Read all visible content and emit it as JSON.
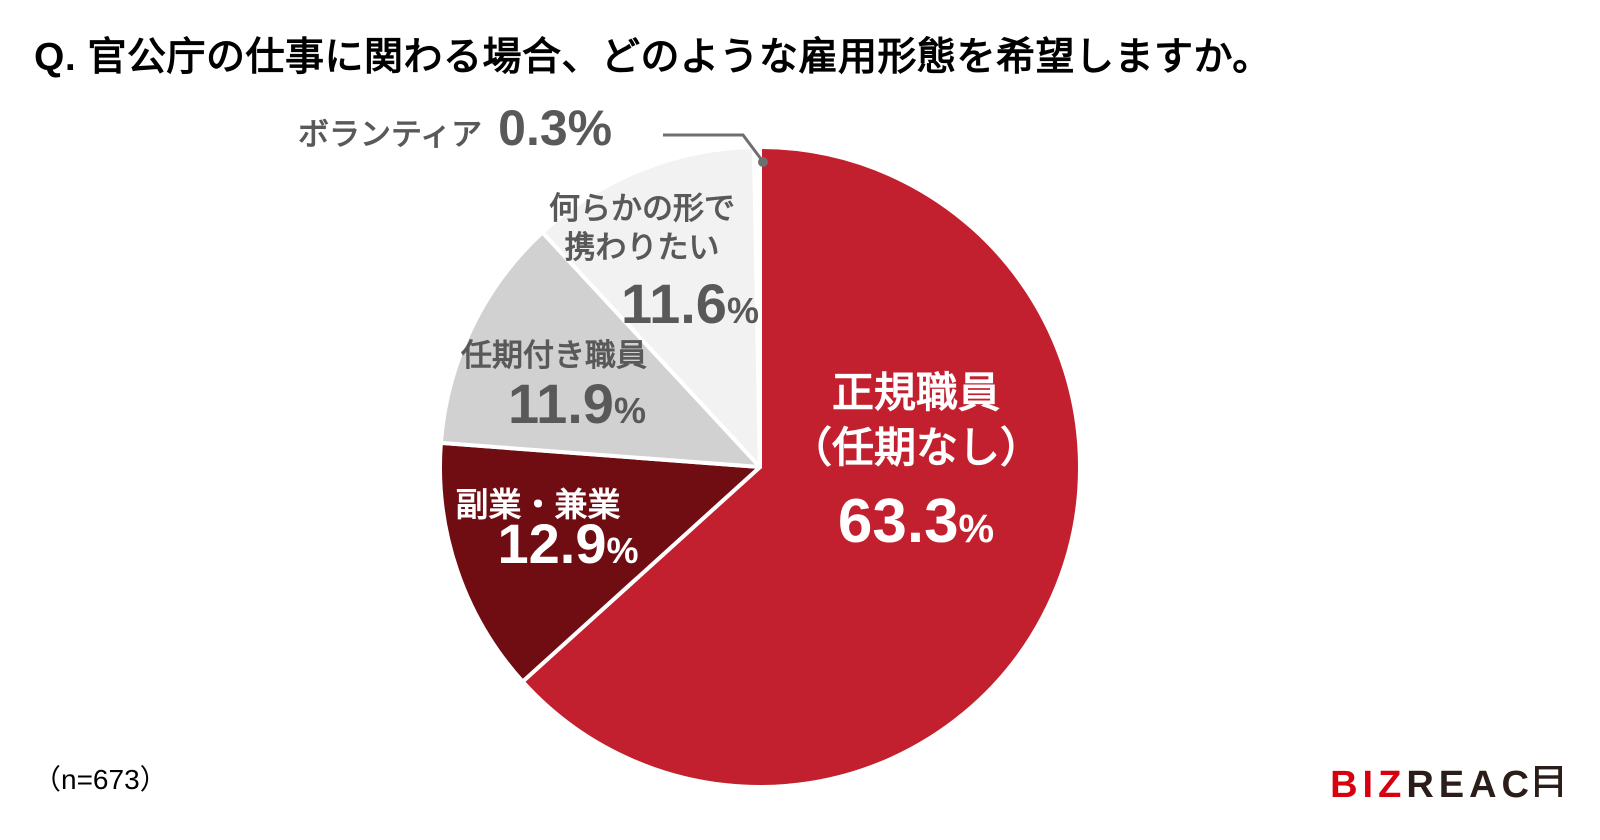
{
  "ui": {
    "title": "Q. 官公庁の仕事に関わる場合、どのような雇用形態を希望しますか。",
    "sample_note": "（n=673）",
    "percent_sign": "%"
  },
  "logo": {
    "biz": "BIZ",
    "reach": "REAC"
  },
  "colors": {
    "main_red": "#c2202e",
    "dark_red": "#700d13",
    "mid_gray": "#d1d1d1",
    "light_gray": "#f2f2f2",
    "volunteer_white": "#fdfdfd",
    "label_gray": "#595959",
    "callout_gray": "#6f6f6f",
    "logo_red": "#d7000f",
    "logo_dark": "#2b1d19"
  },
  "chart_data": {
    "type": "pie",
    "title": "Q. 官公庁の仕事に関わる場合、どのような雇用形態を希望しますか。",
    "sample_size": "n=673",
    "unit": "%",
    "start_angle_deg": 0,
    "direction": "clockwise",
    "legend_position": "on-slice-labels",
    "slices": [
      {
        "label": "正規職員（任期なし）",
        "label_lines": [
          "正規職員",
          "（任期なし）"
        ],
        "value": 63.3,
        "color": "#c2202e",
        "text_color": "#ffffff"
      },
      {
        "label": "副業・兼業",
        "value": 12.9,
        "color": "#700d13",
        "text_color": "#ffffff"
      },
      {
        "label": "任期付き職員",
        "value": 11.9,
        "color": "#d1d1d1",
        "text_color": "#595959"
      },
      {
        "label": "何らかの形で携わりたい",
        "label_lines": [
          "何らかの形で",
          "携わりたい"
        ],
        "value": 11.6,
        "color": "#f2f2f2",
        "text_color": "#595959"
      },
      {
        "label": "ボランティア",
        "value": 0.3,
        "color": "#fdfdfd",
        "text_color": "#595959",
        "callout": true
      }
    ]
  }
}
